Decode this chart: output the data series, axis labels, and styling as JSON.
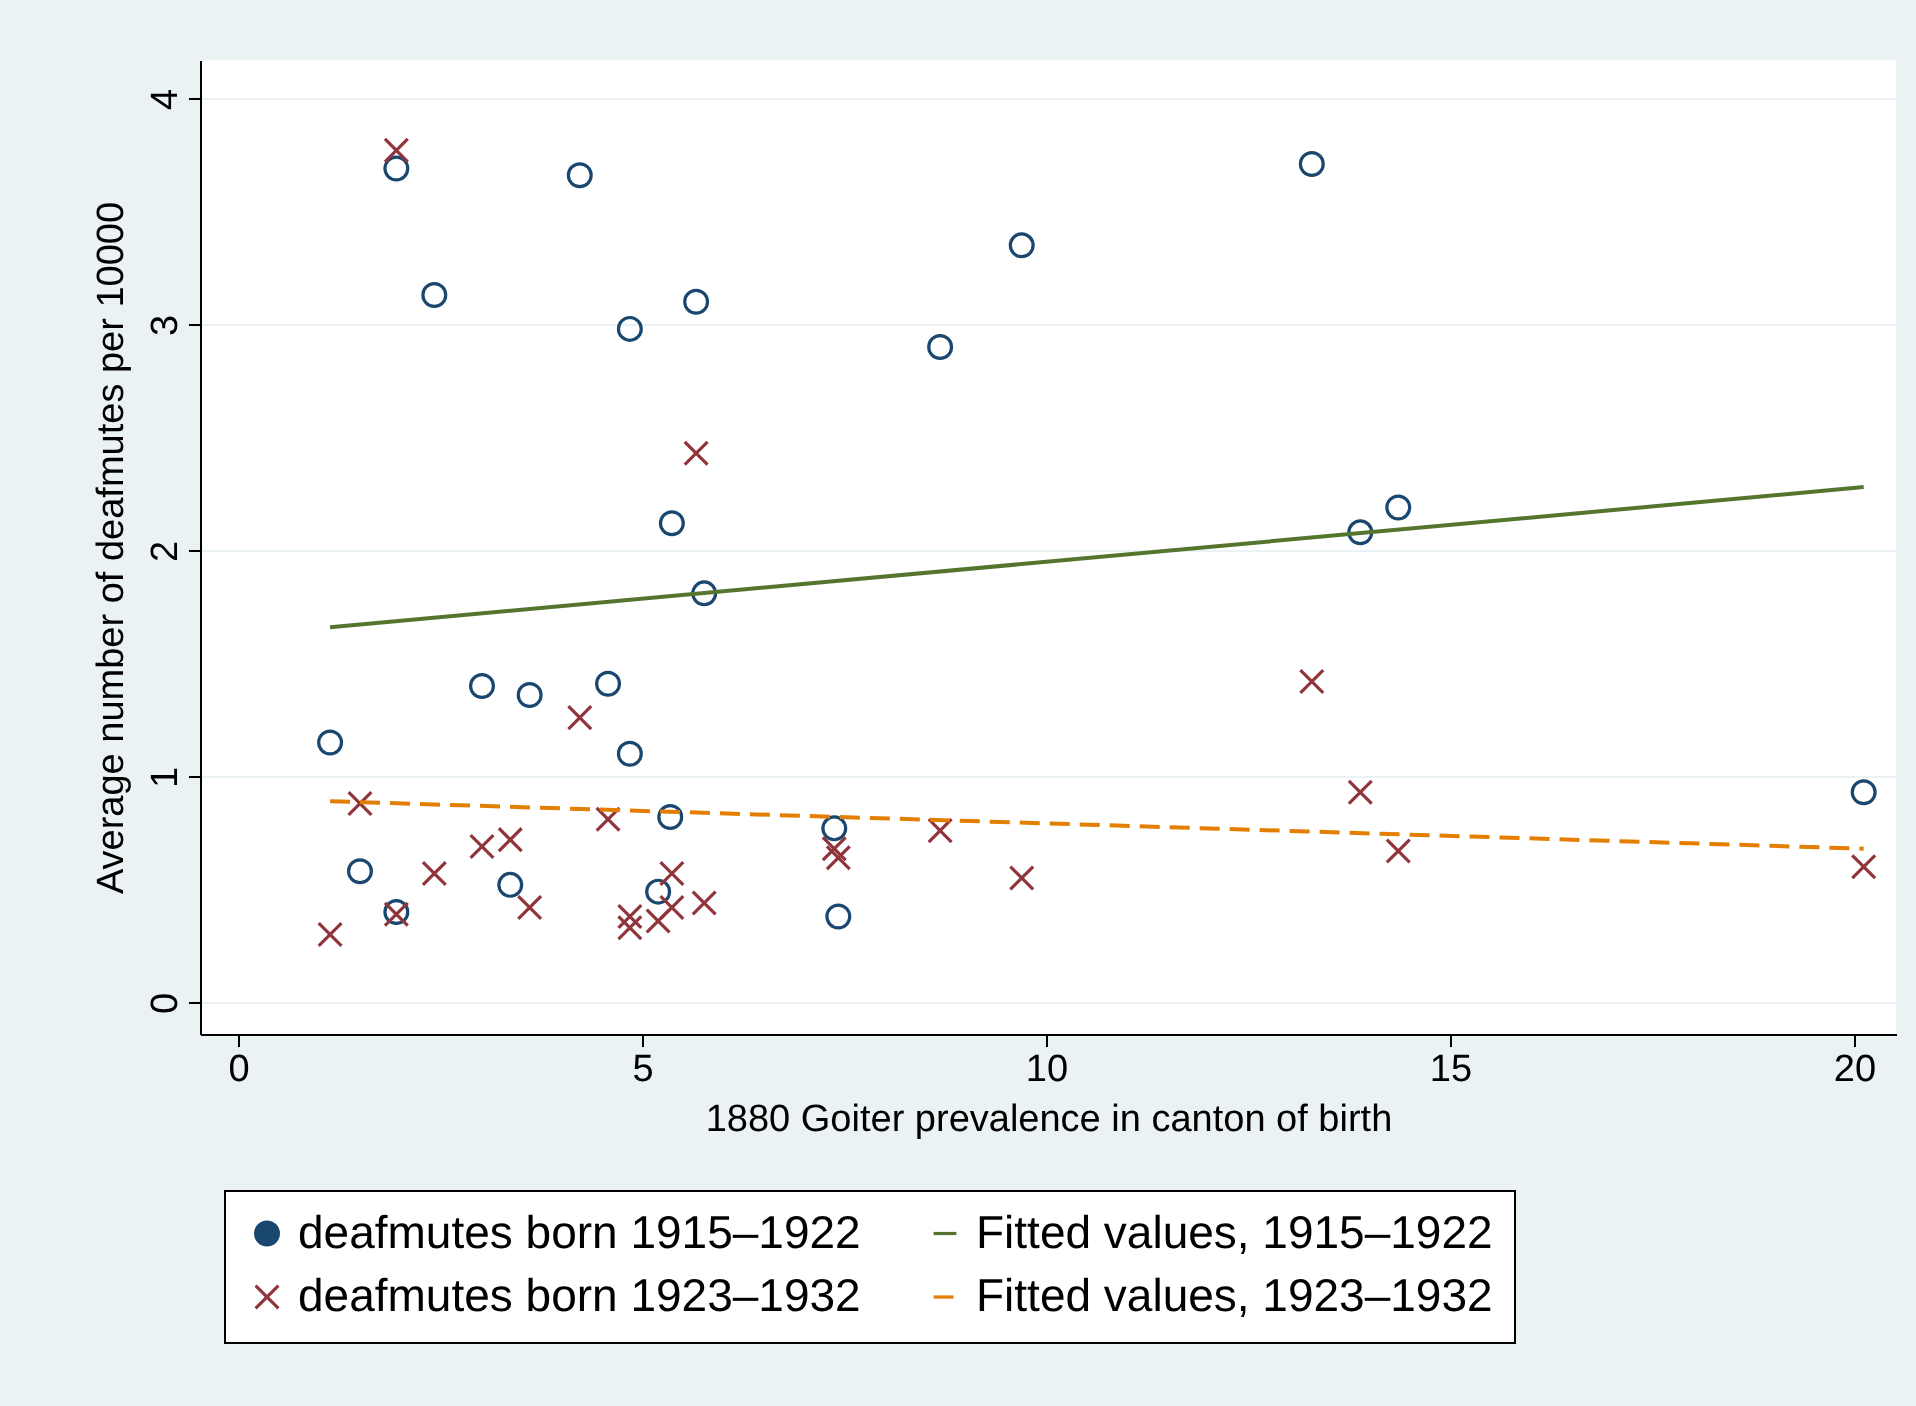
{
  "chart_data": {
    "type": "scatter",
    "xlabel": "1880 Goiter prevalence in canton of birth",
    "ylabel": "Average number of deafmutes per 10000",
    "xlim": [
      -0.47,
      20.52
    ],
    "ylim": [
      -0.14,
      4.17
    ],
    "xticks": [
      0,
      5,
      10,
      15,
      20
    ],
    "yticks": [
      0,
      1,
      2,
      3,
      4
    ],
    "grid": "y",
    "legend": "bottom",
    "series": [
      {
        "name": "deafmutes born 1915–1922",
        "marker": "circle",
        "color": "#1a476f",
        "x": [
          1.14,
          1.51,
          1.96,
          1.96,
          2.43,
          3.02,
          3.37,
          3.61,
          4.23,
          4.58,
          4.85,
          4.85,
          5.37,
          5.35,
          5.2,
          5.67,
          5.77,
          7.38,
          7.43,
          8.69,
          9.7,
          13.29,
          13.89,
          14.36,
          20.12
        ],
        "values": [
          1.15,
          0.58,
          0.4,
          3.69,
          3.13,
          1.4,
          0.52,
          1.36,
          3.66,
          1.41,
          2.98,
          1.1,
          2.12,
          0.82,
          0.49,
          3.1,
          1.81,
          0.77,
          0.38,
          2.9,
          3.35,
          3.71,
          2.08,
          2.19,
          0.93
        ]
      },
      {
        "name": "deafmutes born 1923–1932",
        "marker": "cross",
        "color": "#90353b",
        "x": [
          1.14,
          1.51,
          1.96,
          1.96,
          2.43,
          3.02,
          3.37,
          3.61,
          4.23,
          4.58,
          4.85,
          4.85,
          5.2,
          5.37,
          5.37,
          5.67,
          5.77,
          7.38,
          7.43,
          8.69,
          9.7,
          13.29,
          13.89,
          14.36,
          20.12
        ],
        "values": [
          0.3,
          0.88,
          3.77,
          0.39,
          0.57,
          0.69,
          0.72,
          0.42,
          1.26,
          0.81,
          0.38,
          0.33,
          0.36,
          0.57,
          0.42,
          2.43,
          0.44,
          0.68,
          0.64,
          0.76,
          0.55,
          1.42,
          0.93,
          0.67,
          0.6
        ]
      },
      {
        "name": "Fitted values, 1915–1922",
        "type": "line",
        "line_style": "solid",
        "color": "#55752f",
        "x": [
          1.14,
          20.12
        ],
        "values": [
          1.66,
          2.28
        ]
      },
      {
        "name": "Fitted values, 1923–1932",
        "type": "line",
        "line_style": "dashed",
        "color": "#e37e00",
        "x": [
          1.14,
          20.12
        ],
        "values": [
          0.89,
          0.68
        ]
      }
    ]
  }
}
